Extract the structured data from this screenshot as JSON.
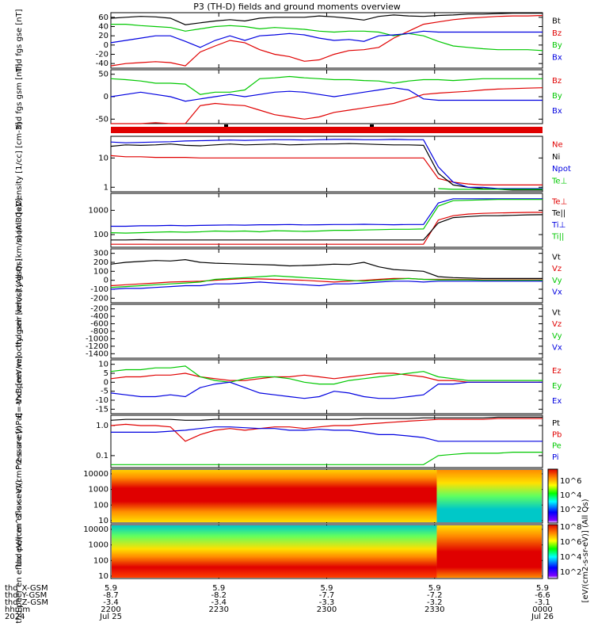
{
  "title": "P3 (TH-D) fields and ground moments overview",
  "colors": {
    "black": "#000000",
    "red": "#e00000",
    "green": "#00c800",
    "blue": "#0000e0"
  },
  "chart_data": [
    {
      "id": "p1",
      "type": "line",
      "ylabel": "thd fgs gse [nT]",
      "yticks": [
        60,
        40,
        20,
        0,
        -20,
        -40
      ],
      "series": [
        {
          "name": "Bt",
          "color": "black",
          "values": [
            58,
            60,
            62,
            61,
            58,
            44,
            48,
            52,
            55,
            52,
            58,
            60,
            60,
            60,
            63,
            61,
            58,
            54,
            62,
            65,
            63,
            62,
            64,
            65,
            67,
            67,
            68,
            69,
            69,
            69
          ]
        },
        {
          "name": "Bz",
          "color": "red",
          "values": [
            -45,
            -40,
            -38,
            -36,
            -38,
            -45,
            -15,
            -2,
            10,
            5,
            -10,
            -20,
            -25,
            -35,
            -32,
            -20,
            -12,
            -10,
            -5,
            15,
            30,
            45,
            50,
            55,
            58,
            60,
            62,
            63,
            63,
            64
          ]
        },
        {
          "name": "By",
          "color": "green",
          "values": [
            45,
            45,
            42,
            40,
            38,
            30,
            35,
            40,
            42,
            40,
            35,
            38,
            36,
            34,
            30,
            28,
            30,
            30,
            28,
            20,
            25,
            20,
            8,
            -2,
            -5,
            -8,
            -10,
            -10,
            -10,
            -12
          ]
        },
        {
          "name": "Bx",
          "color": "blue",
          "values": [
            5,
            10,
            15,
            20,
            20,
            8,
            -5,
            10,
            20,
            10,
            20,
            22,
            25,
            22,
            15,
            10,
            12,
            8,
            20,
            22,
            25,
            30,
            28,
            28,
            28,
            28,
            28,
            28,
            28,
            28
          ]
        }
      ]
    },
    {
      "id": "p2",
      "type": "line",
      "ylabel": "thd fgs gsm [nT]",
      "yticks": [
        50,
        0,
        -50
      ],
      "series": [
        {
          "name": "Bz",
          "color": "red",
          "values": [
            -65,
            -62,
            -60,
            -58,
            -60,
            -62,
            -20,
            -15,
            -18,
            -20,
            -30,
            -40,
            -45,
            -50,
            -45,
            -35,
            -30,
            -25,
            -20,
            -15,
            -5,
            5,
            8,
            10,
            12,
            15,
            17,
            18,
            19,
            20
          ]
        },
        {
          "name": "By",
          "color": "green",
          "values": [
            40,
            38,
            35,
            30,
            30,
            28,
            5,
            10,
            10,
            15,
            40,
            42,
            45,
            42,
            40,
            38,
            38,
            36,
            35,
            30,
            35,
            38,
            38,
            36,
            38,
            40,
            40,
            40,
            40,
            40
          ]
        },
        {
          "name": "Bx",
          "color": "blue",
          "values": [
            0,
            5,
            10,
            5,
            0,
            -10,
            -5,
            0,
            5,
            0,
            5,
            10,
            12,
            10,
            5,
            0,
            5,
            10,
            15,
            20,
            15,
            -5,
            -8,
            -8,
            -8,
            -8,
            -8,
            -8,
            -8,
            -8
          ]
        }
      ]
    },
    {
      "id": "p3",
      "type": "line",
      "ylabel": "Density [1/cc] [cm-3]",
      "yticks": [
        "10",
        "1"
      ],
      "scale": "log",
      "series": [
        {
          "name": "Ne",
          "color": "red",
          "values": [
            12,
            11,
            11,
            10.5,
            10.5,
            10.5,
            10,
            10,
            10,
            10,
            10,
            10,
            10,
            10,
            10,
            10,
            10,
            10,
            10,
            10,
            10,
            10,
            2,
            1.5,
            1.3,
            1.2,
            1.2,
            1.2,
            1.2,
            1.2
          ]
        },
        {
          "name": "Ni",
          "color": "black",
          "values": [
            25,
            28,
            27,
            28,
            30,
            27,
            26,
            28,
            30,
            28,
            29,
            30,
            28,
            29,
            30,
            30,
            31,
            30,
            29,
            28,
            28,
            27,
            3,
            1.2,
            1.0,
            0.9,
            0.85,
            0.8,
            0.8,
            0.8
          ]
        },
        {
          "name": "Npot",
          "color": "blue",
          "values": [
            35,
            33,
            34,
            35,
            36,
            38,
            39,
            40,
            41,
            40,
            41,
            42,
            42,
            41,
            42,
            43,
            43,
            42,
            42,
            43,
            42,
            42,
            5,
            1.5,
            1.0,
            1.0,
            0.9,
            0.9,
            0.9,
            0.9
          ]
        },
        {
          "name": "Te⊥",
          "color": "green",
          "values": [
            null,
            null,
            null,
            null,
            null,
            null,
            null,
            null,
            null,
            null,
            null,
            null,
            null,
            null,
            null,
            null,
            null,
            null,
            null,
            null,
            null,
            null,
            0.9,
            0.85,
            0.85,
            0.85,
            0.85,
            0.85,
            0.85,
            0.85
          ]
        }
      ]
    },
    {
      "id": "p4",
      "type": "line",
      "ylabel": "mom3 [eV]",
      "yticks": [
        "1000",
        "100"
      ],
      "scale": "log",
      "legend": [
        "Te⊥",
        "Te||",
        "Ti⊥",
        "Ti||"
      ],
      "series": [
        {
          "name": "Te⊥",
          "color": "red",
          "values": [
            40,
            40,
            40,
            40,
            40,
            40,
            40,
            40,
            40,
            40,
            40,
            40,
            40,
            40,
            40,
            40,
            40,
            40,
            40,
            40,
            40,
            40,
            400,
            600,
            700,
            750,
            780,
            800,
            820,
            830
          ]
        },
        {
          "name": "Te||",
          "color": "black",
          "values": [
            60,
            60,
            62,
            60,
            60,
            60,
            60,
            60,
            60,
            60,
            60,
            60,
            60,
            60,
            60,
            60,
            60,
            60,
            60,
            60,
            60,
            60,
            300,
            500,
            550,
            600,
            600,
            620,
            650,
            660
          ]
        },
        {
          "name": "Ti⊥",
          "color": "blue",
          "values": [
            220,
            220,
            230,
            230,
            240,
            230,
            240,
            245,
            250,
            245,
            255,
            255,
            260,
            250,
            255,
            260,
            260,
            265,
            260,
            255,
            260,
            260,
            2000,
            3000,
            3000,
            3000,
            3000,
            3000,
            3000,
            3000
          ]
        },
        {
          "name": "Ti||",
          "color": "green",
          "values": [
            120,
            115,
            120,
            125,
            130,
            125,
            130,
            140,
            135,
            140,
            130,
            145,
            140,
            135,
            140,
            150,
            150,
            155,
            160,
            165,
            165,
            170,
            1500,
            2500,
            2600,
            2700,
            2800,
            2800,
            2800,
            2800
          ]
        }
      ]
    },
    {
      "id": "p5",
      "type": "line",
      "ylabel": "thd peir velocity gsm [km/s] (All Qs)",
      "yticks": [
        300,
        200,
        100,
        0,
        -100,
        -200
      ],
      "series": [
        {
          "name": "Vt",
          "color": "black",
          "values": [
            180,
            200,
            210,
            220,
            215,
            230,
            200,
            190,
            185,
            180,
            175,
            170,
            160,
            165,
            170,
            180,
            175,
            200,
            150,
            120,
            110,
            100,
            40,
            30,
            25,
            20,
            20,
            20,
            20,
            20
          ]
        },
        {
          "name": "Vz",
          "color": "red",
          "values": [
            -60,
            -50,
            -40,
            -30,
            -20,
            -15,
            -10,
            0,
            10,
            20,
            15,
            10,
            5,
            0,
            -10,
            -20,
            -10,
            0,
            10,
            20,
            20,
            10,
            10,
            10,
            10,
            5,
            5,
            5,
            5,
            5
          ]
        },
        {
          "name": "Vy",
          "color": "green",
          "values": [
            -80,
            -70,
            -60,
            -50,
            -40,
            -30,
            -20,
            10,
            20,
            30,
            40,
            50,
            40,
            30,
            20,
            10,
            0,
            -10,
            0,
            10,
            20,
            10,
            5,
            5,
            5,
            0,
            0,
            0,
            0,
            0
          ]
        },
        {
          "name": "Vx",
          "color": "blue",
          "values": [
            -100,
            -90,
            -90,
            -80,
            -70,
            -60,
            -60,
            -40,
            -40,
            -30,
            -20,
            -30,
            -40,
            -50,
            -60,
            -40,
            -40,
            -30,
            -20,
            -10,
            -10,
            -20,
            -10,
            -10,
            -10,
            -10,
            -10,
            -10,
            -10,
            -10
          ]
        }
      ]
    },
    {
      "id": "p6",
      "type": "line",
      "ylabel": "thd peer velocity gsm [km/s] (All Qs)",
      "yticks": [
        -200,
        -400,
        -600,
        -800,
        -1000,
        -1200,
        -1400
      ],
      "legend": [
        "Vt",
        "Vz",
        "Vy",
        "Vx"
      ],
      "series": []
    },
    {
      "id": "p7",
      "type": "line",
      "ylabel": "E=-VxB [mV/m]",
      "yticks": [
        10,
        5,
        0,
        -5,
        -10,
        -15
      ],
      "series": [
        {
          "name": "Ez",
          "color": "red",
          "values": [
            2,
            3,
            3,
            4,
            4,
            5,
            3,
            2,
            1,
            1,
            2,
            3,
            3,
            4,
            3,
            2,
            3,
            4,
            5,
            5,
            4,
            3,
            1,
            1,
            0,
            0,
            0,
            0,
            0,
            0
          ]
        },
        {
          "name": "Ey",
          "color": "green",
          "values": [
            6,
            7,
            7,
            8,
            8,
            9,
            3,
            1,
            0,
            2,
            3,
            3,
            2,
            0,
            -1,
            -1,
            1,
            2,
            3,
            4,
            5,
            6,
            3,
            2,
            1,
            1,
            1,
            1,
            1,
            1
          ]
        },
        {
          "name": "Ex",
          "color": "blue",
          "values": [
            -6,
            -7,
            -8,
            -8,
            -7,
            -8,
            -3,
            -1,
            0,
            -3,
            -6,
            -7,
            -8,
            -9,
            -8,
            -5,
            -6,
            -8,
            -9,
            -9,
            -8,
            -7,
            -1,
            -1,
            0,
            0,
            0,
            0,
            0,
            0
          ]
        }
      ]
    },
    {
      "id": "p8",
      "type": "line",
      "ylabel": "Pressure [nPa]",
      "yticks": [
        "1.0",
        "0.1"
      ],
      "scale": "log",
      "series": [
        {
          "name": "Pt",
          "color": "black",
          "values": [
            1.5,
            1.6,
            1.6,
            1.6,
            1.6,
            1.5,
            1.5,
            1.6,
            1.6,
            1.6,
            1.6,
            1.6,
            1.6,
            1.6,
            1.6,
            1.6,
            1.6,
            1.7,
            1.7,
            1.7,
            1.7,
            1.8,
            1.8,
            1.8,
            1.8,
            1.8,
            1.9,
            1.9,
            1.9,
            1.9
          ]
        },
        {
          "name": "Pb",
          "color": "red",
          "values": [
            1.0,
            1.1,
            1.0,
            1.0,
            0.9,
            0.3,
            0.5,
            0.7,
            0.8,
            0.7,
            0.8,
            0.9,
            0.9,
            0.8,
            0.9,
            1.0,
            1.0,
            1.1,
            1.2,
            1.3,
            1.4,
            1.5,
            1.6,
            1.6,
            1.6,
            1.6,
            1.7,
            1.7,
            1.7,
            1.7
          ]
        },
        {
          "name": "Pe",
          "color": "green",
          "values": [
            0.05,
            0.05,
            0.05,
            0.05,
            0.05,
            0.05,
            0.05,
            0.05,
            0.05,
            0.05,
            0.05,
            0.05,
            0.05,
            0.05,
            0.05,
            0.05,
            0.05,
            0.05,
            0.05,
            0.05,
            0.05,
            0.05,
            0.1,
            0.11,
            0.12,
            0.12,
            0.12,
            0.13,
            0.13,
            0.13
          ]
        },
        {
          "name": "Pi",
          "color": "blue",
          "values": [
            0.6,
            0.6,
            0.6,
            0.6,
            0.65,
            0.7,
            0.8,
            0.9,
            0.9,
            0.85,
            0.8,
            0.8,
            0.7,
            0.7,
            0.75,
            0.7,
            0.7,
            0.6,
            0.5,
            0.5,
            0.45,
            0.4,
            0.3,
            0.3,
            0.3,
            0.3,
            0.3,
            0.3,
            0.3,
            0.3
          ]
        }
      ]
    },
    {
      "id": "p9",
      "type": "heatmap",
      "ylabel": "thd peir en eflux eV/(cm^2-s-sr-eV)",
      "yticks": [
        "10000",
        "1000",
        "100",
        "10"
      ]
    },
    {
      "id": "p10",
      "type": "heatmap",
      "ylabel": "thd peer en eflux eV/(cm^2-s-sr-eV)",
      "yticks": [
        "10000",
        "1000",
        "100",
        "10"
      ]
    }
  ],
  "colorbar": {
    "label": "[eV/(cm2-s-sr-eV)] (All Qs)",
    "ticks_top": [
      "10^6",
      "10^4",
      "10^2"
    ],
    "ticks_bottom": [
      "10^8",
      "10^6",
      "10^4",
      "10^2"
    ]
  },
  "xaxis": {
    "row_labels": [
      "thd_X-GSM",
      "thd_Y-GSM",
      "thd_Z-GSM",
      "hhmm",
      "2024"
    ],
    "ticks": [
      {
        "x": "5.9",
        "y": "-8.7",
        "z": "-3.4",
        "hhmm": "2200",
        "date": "Jul 25"
      },
      {
        "x": "5.9",
        "y": "-8.2",
        "z": "-3.4",
        "hhmm": "2230",
        "date": ""
      },
      {
        "x": "5.9",
        "y": "-7.7",
        "z": "-3.3",
        "hhmm": "2300",
        "date": ""
      },
      {
        "x": "5.9",
        "y": "-7.2",
        "z": "-3.2",
        "hhmm": "2330",
        "date": ""
      },
      {
        "x": "5.9",
        "y": "-6.6",
        "z": "-3.1",
        "hhmm": "0000",
        "date": "Jul 26"
      }
    ]
  }
}
